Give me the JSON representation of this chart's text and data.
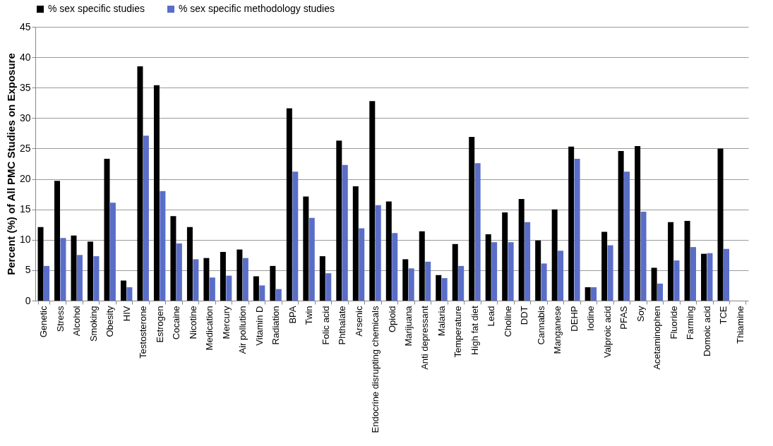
{
  "chart_data": {
    "type": "bar",
    "ylabel": "Percent (%) of All PMC Studies on Exposure",
    "categories": [
      "Genetic",
      "Stress",
      "Alcohol",
      "Smoking",
      "Obesity",
      "HIV",
      "Testosterone",
      "Estrogen",
      "Cocaine",
      "Nicotine",
      "Medication",
      "Mercury",
      "Air pollution",
      "Vitamin D",
      "Radiation",
      "BPA",
      "Twin",
      "Folic acid",
      "Phthalate",
      "Arsenic",
      "Endocrine disrupting chemicals",
      "Opioid",
      "Marijuana",
      "Anti depressant",
      "Malaria",
      "Temperature",
      "High fat diet",
      "Lead",
      "Choline",
      "DDT",
      "Cannabis",
      "Manganese",
      "DEHP",
      "Iodine",
      "Valproic acid",
      "PFAS",
      "Soy",
      "Acetaminophen",
      "Fluoride",
      "Farming",
      "Domoic acid",
      "TCE",
      "Thiamine"
    ],
    "series": [
      {
        "name": "% sex specific studies",
        "color": "#000000",
        "values": [
          12.1,
          19.7,
          10.7,
          9.7,
          23.3,
          3.3,
          38.5,
          35.4,
          13.9,
          12.1,
          7.0,
          8.0,
          8.4,
          4.0,
          5.7,
          31.6,
          17.1,
          7.3,
          26.3,
          18.8,
          32.8,
          16.3,
          6.8,
          11.4,
          4.2,
          9.3,
          26.9,
          10.9,
          14.5,
          16.7,
          9.9,
          15.0,
          25.3,
          2.2,
          11.3,
          24.6,
          25.4,
          5.4,
          12.9,
          13.1,
          7.7,
          25.0,
          0
        ]
      },
      {
        "name": "% sex specific methodology studies",
        "color": "#5a6ec8",
        "values": [
          5.7,
          10.3,
          7.5,
          7.3,
          16.1,
          2.2,
          27.1,
          18.0,
          9.4,
          6.8,
          3.8,
          4.1,
          7.0,
          2.5,
          1.9,
          21.2,
          13.6,
          4.5,
          22.3,
          11.9,
          15.7,
          11.1,
          5.3,
          6.4,
          3.7,
          5.7,
          22.6,
          9.6,
          9.6,
          12.9,
          6.1,
          8.2,
          23.3,
          2.2,
          9.1,
          21.2,
          14.6,
          2.8,
          6.6,
          8.8,
          7.8,
          8.5,
          0
        ]
      }
    ],
    "ylim": [
      0,
      45
    ],
    "yticks": [
      0,
      5,
      10,
      15,
      20,
      25,
      30,
      35,
      40,
      45
    ],
    "grid": "y",
    "legend": "top"
  }
}
